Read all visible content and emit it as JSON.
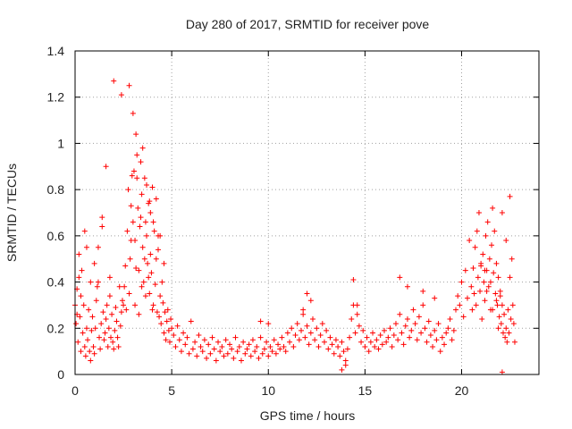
{
  "chart_data": {
    "type": "scatter",
    "title": "Day 280 of 2017, SRMTID for receiver pove",
    "xlabel": "GPS time / hours",
    "ylabel": "SRMTID / TECUs",
    "xlim": [
      0,
      24
    ],
    "ylim": [
      0,
      1.4
    ],
    "x_ticks": [
      0,
      5,
      10,
      15,
      20
    ],
    "x_tick_labels": [
      "0",
      "5",
      "10",
      "15",
      "20"
    ],
    "y_ticks": [
      0,
      0.2,
      0.4,
      0.6,
      0.8,
      1.0,
      1.2,
      1.4
    ],
    "y_tick_labels": [
      "0",
      "0.2",
      "0.4",
      "0.6",
      "0.8",
      "1",
      "1.2",
      "1.4"
    ],
    "grid": true,
    "marker": "+",
    "color": "#ff0000",
    "series": [
      {
        "name": "SRMTID",
        "x": [
          0.0,
          0.05,
          0.1,
          0.15,
          0.2,
          0.25,
          0.3,
          0.35,
          0.4,
          0.45,
          0.5,
          0.55,
          0.6,
          0.65,
          0.7,
          0.75,
          0.8,
          0.85,
          0.9,
          0.95,
          1.0,
          1.05,
          1.1,
          1.15,
          1.2,
          1.25,
          1.3,
          1.35,
          1.4,
          1.45,
          1.5,
          1.55,
          1.6,
          1.65,
          1.7,
          1.75,
          1.8,
          1.85,
          1.9,
          1.95,
          2.0,
          2.05,
          2.1,
          2.15,
          2.2,
          2.25,
          2.3,
          2.35,
          2.4,
          2.45,
          2.5,
          2.55,
          2.6,
          2.65,
          2.7,
          2.75,
          2.8,
          2.85,
          2.9,
          2.95,
          3.0,
          3.05,
          3.1,
          3.15,
          3.2,
          3.25,
          3.3,
          3.35,
          3.4,
          3.45,
          3.5,
          3.55,
          3.6,
          3.65,
          3.7,
          3.75,
          3.8,
          3.85,
          3.9,
          3.95,
          4.0,
          4.05,
          4.1,
          4.15,
          4.2,
          4.25,
          4.3,
          4.35,
          4.4,
          4.45,
          4.5,
          4.55,
          4.6,
          4.65,
          4.7,
          4.75,
          4.8,
          4.85,
          4.9,
          4.95,
          5.0,
          5.1,
          5.2,
          5.3,
          5.4,
          5.5,
          5.6,
          5.7,
          5.8,
          5.9,
          6.0,
          6.1,
          6.2,
          6.3,
          6.4,
          6.5,
          6.6,
          6.7,
          6.8,
          6.9,
          7.0,
          7.1,
          7.2,
          7.3,
          7.4,
          7.5,
          7.6,
          7.7,
          7.8,
          7.9,
          8.0,
          8.1,
          8.2,
          8.3,
          8.4,
          8.5,
          8.6,
          8.7,
          8.8,
          8.9,
          9.0,
          9.1,
          9.2,
          9.3,
          9.4,
          9.5,
          9.6,
          9.7,
          9.8,
          9.9,
          10.0,
          10.1,
          10.2,
          10.3,
          10.4,
          10.5,
          10.6,
          10.7,
          10.8,
          10.9,
          11.0,
          11.1,
          11.2,
          11.3,
          11.4,
          11.5,
          11.6,
          11.7,
          11.8,
          11.9,
          12.0,
          12.1,
          12.2,
          12.3,
          12.4,
          12.5,
          12.6,
          12.7,
          12.8,
          12.9,
          13.0,
          13.1,
          13.2,
          13.3,
          13.4,
          13.5,
          13.6,
          13.7,
          13.8,
          13.9,
          14.0,
          14.1,
          14.2,
          14.3,
          14.4,
          14.5,
          14.6,
          14.7,
          14.8,
          14.9,
          15.0,
          15.1,
          15.2,
          15.3,
          15.4,
          15.5,
          15.6,
          15.7,
          15.8,
          15.9,
          16.0,
          16.1,
          16.2,
          16.3,
          16.4,
          16.5,
          16.6,
          16.7,
          16.8,
          16.9,
          17.0,
          17.1,
          17.2,
          17.3,
          17.4,
          17.5,
          17.6,
          17.7,
          17.8,
          17.9,
          18.0,
          18.1,
          18.2,
          18.3,
          18.4,
          18.5,
          18.6,
          18.7,
          18.8,
          18.9,
          19.0,
          19.1,
          19.2,
          19.3,
          19.4,
          19.5,
          19.6,
          19.7,
          19.8,
          19.9,
          20.0,
          20.1,
          20.2,
          20.3,
          20.4,
          20.5,
          20.55,
          20.6,
          20.65,
          20.7,
          20.75,
          20.8,
          20.85,
          20.9,
          20.95,
          21.0,
          21.05,
          21.1,
          21.15,
          21.2,
          21.25,
          21.3,
          21.35,
          21.4,
          21.45,
          21.5,
          21.55,
          21.6,
          21.65,
          21.7,
          21.75,
          21.8,
          21.85,
          21.9,
          21.95,
          22.0,
          22.05,
          22.1,
          22.15,
          22.2,
          22.25,
          22.3,
          22.35,
          22.4,
          22.45,
          22.5,
          22.55,
          22.6,
          22.65,
          22.7,
          22.75,
          0.1,
          0.3,
          0.5,
          0.8,
          1.2,
          1.6,
          2.0,
          2.4,
          2.8,
          3.0,
          3.2,
          3.4,
          3.6,
          3.8,
          4.0,
          4.2,
          4.4,
          4.6,
          3.1,
          3.3,
          3.5,
          3.7,
          3.9,
          2.9,
          3.15,
          3.45,
          3.65,
          3.85,
          4.05,
          4.3,
          21.0,
          21.3,
          21.6,
          21.9,
          22.1,
          22.3,
          22.5,
          21.2,
          21.5,
          21.8,
          22.0,
          14.4,
          14.6,
          16.8,
          17.2,
          18.0,
          18.6,
          12.0,
          12.2,
          11.8,
          9.6,
          10.0,
          13.8,
          14.0,
          22.1,
          0.2,
          0.6,
          1.0,
          1.4,
          1.8
        ],
        "y": [
          0.3,
          0.22,
          0.37,
          0.14,
          0.52,
          0.25,
          0.1,
          0.45,
          0.18,
          0.3,
          0.12,
          0.08,
          0.2,
          0.15,
          0.28,
          0.1,
          0.06,
          0.19,
          0.25,
          0.12,
          0.09,
          0.2,
          0.32,
          0.38,
          0.4,
          0.16,
          0.11,
          0.22,
          0.64,
          0.27,
          0.15,
          0.18,
          0.24,
          0.3,
          0.12,
          0.2,
          0.34,
          0.16,
          0.26,
          0.14,
          0.11,
          0.19,
          0.29,
          0.23,
          0.16,
          0.12,
          0.38,
          0.21,
          0.27,
          0.32,
          0.3,
          0.38,
          0.47,
          0.28,
          0.62,
          0.8,
          0.35,
          0.5,
          0.73,
          0.86,
          0.66,
          0.88,
          0.58,
          1.04,
          0.95,
          0.72,
          0.45,
          0.64,
          0.92,
          0.78,
          0.55,
          0.4,
          0.85,
          0.66,
          0.6,
          0.48,
          0.74,
          0.35,
          0.52,
          0.44,
          0.81,
          0.3,
          0.62,
          0.39,
          0.5,
          0.27,
          0.6,
          0.25,
          0.34,
          0.22,
          0.4,
          0.31,
          0.18,
          0.27,
          0.15,
          0.23,
          0.28,
          0.19,
          0.14,
          0.24,
          0.2,
          0.17,
          0.12,
          0.21,
          0.15,
          0.1,
          0.18,
          0.13,
          0.16,
          0.09,
          0.23,
          0.11,
          0.14,
          0.08,
          0.17,
          0.12,
          0.1,
          0.15,
          0.07,
          0.13,
          0.09,
          0.16,
          0.11,
          0.06,
          0.14,
          0.1,
          0.12,
          0.08,
          0.15,
          0.09,
          0.13,
          0.11,
          0.07,
          0.16,
          0.1,
          0.12,
          0.06,
          0.14,
          0.09,
          0.11,
          0.13,
          0.08,
          0.15,
          0.1,
          0.12,
          0.07,
          0.16,
          0.09,
          0.11,
          0.14,
          0.08,
          0.12,
          0.1,
          0.15,
          0.09,
          0.13,
          0.11,
          0.16,
          0.12,
          0.1,
          0.18,
          0.14,
          0.2,
          0.12,
          0.17,
          0.22,
          0.15,
          0.19,
          0.26,
          0.16,
          0.21,
          0.13,
          0.18,
          0.24,
          0.15,
          0.2,
          0.12,
          0.17,
          0.22,
          0.14,
          0.19,
          0.11,
          0.16,
          0.13,
          0.09,
          0.15,
          0.12,
          0.08,
          0.14,
          0.1,
          0.06,
          0.11,
          0.16,
          0.24,
          0.3,
          0.18,
          0.26,
          0.21,
          0.14,
          0.19,
          0.12,
          0.16,
          0.1,
          0.14,
          0.18,
          0.12,
          0.15,
          0.11,
          0.17,
          0.13,
          0.19,
          0.14,
          0.16,
          0.2,
          0.12,
          0.17,
          0.22,
          0.15,
          0.26,
          0.18,
          0.13,
          0.21,
          0.24,
          0.16,
          0.19,
          0.28,
          0.22,
          0.15,
          0.25,
          0.18,
          0.3,
          0.2,
          0.14,
          0.23,
          0.17,
          0.12,
          0.19,
          0.15,
          0.22,
          0.1,
          0.16,
          0.13,
          0.18,
          0.2,
          0.24,
          0.15,
          0.19,
          0.28,
          0.34,
          0.3,
          0.4,
          0.25,
          0.45,
          0.33,
          0.58,
          0.38,
          0.28,
          0.46,
          0.35,
          0.55,
          0.3,
          0.62,
          0.42,
          0.7,
          0.36,
          0.48,
          0.24,
          0.52,
          0.4,
          0.32,
          0.6,
          0.45,
          0.66,
          0.38,
          0.5,
          0.28,
          0.56,
          0.72,
          0.44,
          0.62,
          0.35,
          0.48,
          0.3,
          0.42,
          0.25,
          0.36,
          0.22,
          0.3,
          0.18,
          0.26,
          0.16,
          0.2,
          0.14,
          0.28,
          0.18,
          0.42,
          0.24,
          0.5,
          0.3,
          0.22,
          0.14,
          0.26,
          0.34,
          0.62,
          0.4,
          0.55,
          0.9,
          1.27,
          1.21,
          1.25,
          1.13,
          0.85,
          0.68,
          0.5,
          0.42,
          0.28,
          0.76,
          0.6,
          0.48,
          0.3,
          0.26,
          0.98,
          0.82,
          0.7,
          0.58,
          0.46,
          0.38,
          0.34,
          0.75,
          0.66,
          0.54,
          0.47,
          0.36,
          0.28,
          0.2,
          0.7,
          0.58,
          0.77,
          0.45,
          0.4,
          0.32,
          0.34,
          0.41,
          0.3,
          0.42,
          0.38,
          0.36,
          0.33,
          0.35,
          0.32,
          0.28,
          0.23,
          0.22,
          0.02,
          0.04,
          0.01,
          0.42,
          0.55,
          0.48,
          0.68,
          0.42
        ]
      }
    ]
  }
}
